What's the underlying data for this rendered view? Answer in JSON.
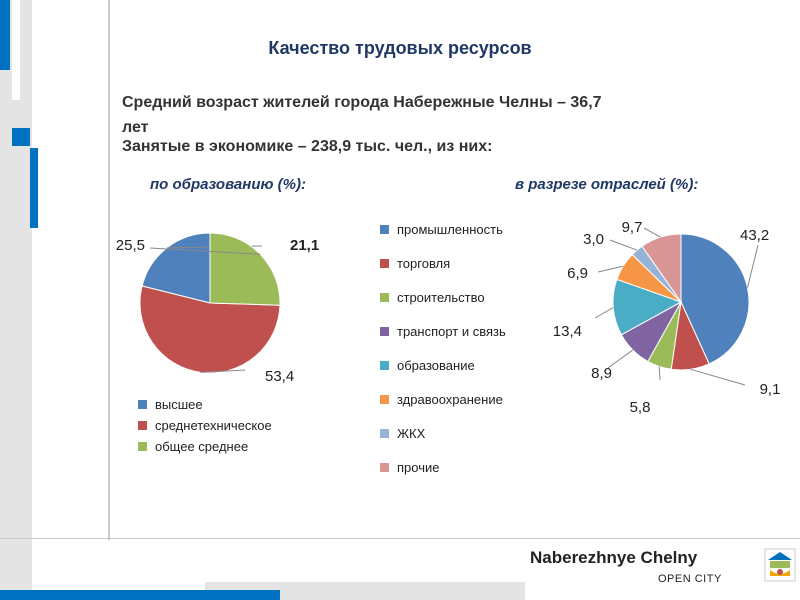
{
  "slide": {
    "title": "Качество трудовых ресурсов",
    "line1": "Средний возраст жителей города Набережные Челны – 36,7",
    "line1_cont": "лет",
    "line2": "Занятые в экономике – 238,9 тыс. чел., из них:"
  },
  "colors": {
    "accent_blue": "#0070c0",
    "decor_gray": "#c9c9c9"
  },
  "chart_data": [
    {
      "type": "pie",
      "title": "по образованию (%):",
      "labels": [
        "высшее",
        "среднетехническое",
        "общее среднее"
      ],
      "values": [
        21.1,
        53.4,
        25.5
      ],
      "value_labels": [
        "21,1",
        "53,4",
        "25,5"
      ],
      "colors": [
        "#4f81bd",
        "#c0504d",
        "#9bbb59"
      ],
      "legend": "bottom"
    },
    {
      "type": "pie",
      "title": "в разрезе отраслей (%):",
      "labels": [
        "промышленность",
        "торговля",
        "строительство",
        "транспорт и связь",
        "образование",
        "здравоохранение",
        "ЖКХ",
        "прочие"
      ],
      "values": [
        43.2,
        9.1,
        5.8,
        8.9,
        13.4,
        6.9,
        3.0,
        9.7
      ],
      "value_labels": [
        "43,2",
        "9,1",
        "5,8",
        "8,9",
        "13,4",
        "6,9",
        "3,0",
        "9,7"
      ],
      "colors": [
        "#4f81bd",
        "#c0504d",
        "#9bbb59",
        "#8064a2",
        "#4bacc6",
        "#f79646",
        "#95b3d7",
        "#d99694"
      ],
      "legend": "left"
    }
  ],
  "footer": {
    "brand": "Naberezhnye Chelny",
    "tagline": "OPEN CITY"
  }
}
